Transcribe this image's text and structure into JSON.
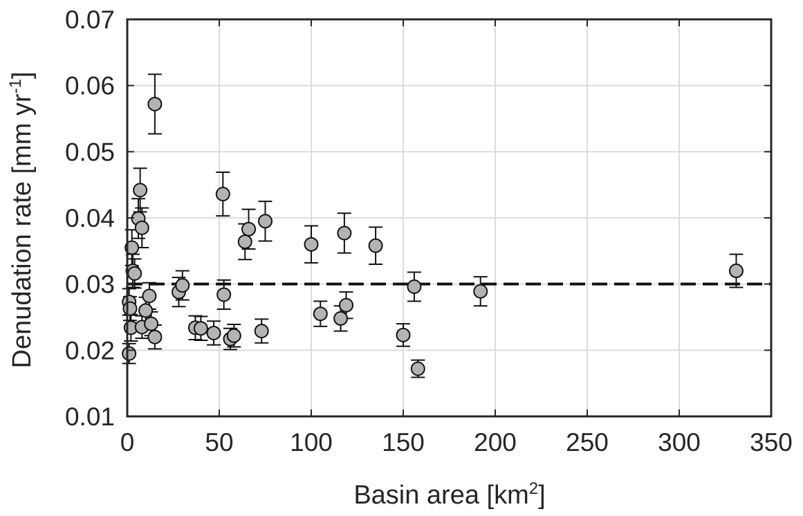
{
  "chart_data": {
    "type": "scatter",
    "xlabel": "Basin area [km",
    "xlabel_sup": "2",
    "xlabel_tail": "]",
    "ylabel": "Denudation rate [mm yr",
    "ylabel_sup": "-1",
    "ylabel_tail": "]",
    "xlim": [
      0,
      350
    ],
    "ylim": [
      0.01,
      0.07
    ],
    "x_ticks": [
      0,
      50,
      100,
      150,
      200,
      250,
      300,
      350
    ],
    "x_tick_labels": [
      "0",
      "50",
      "100",
      "150",
      "200",
      "250",
      "300",
      "350"
    ],
    "y_ticks": [
      0.01,
      0.02,
      0.03,
      0.04,
      0.05,
      0.06,
      0.07
    ],
    "y_tick_labels": [
      "0.01",
      "0.02",
      "0.03",
      "0.04",
      "0.05",
      "0.06",
      "0.07"
    ],
    "grid": true,
    "reference_line": {
      "y": 0.03,
      "style": "dashed"
    },
    "marker_color": "#b3b3b3",
    "series": [
      {
        "points": [
          {
            "x": 1.0,
            "y": 0.0195,
            "err": 0.0015
          },
          {
            "x": 1.0,
            "y": 0.0273,
            "err": 0.002
          },
          {
            "x": 1.5,
            "y": 0.0263,
            "err": 0.0018
          },
          {
            "x": 2.0,
            "y": 0.0234,
            "err": 0.002
          },
          {
            "x": 2.5,
            "y": 0.0355,
            "err": 0.0027
          },
          {
            "x": 3.0,
            "y": 0.032,
            "err": 0.0025
          },
          {
            "x": 4.0,
            "y": 0.0316,
            "err": 0.0022
          },
          {
            "x": 6.0,
            "y": 0.0399,
            "err": 0.003
          },
          {
            "x": 7.0,
            "y": 0.0442,
            "err": 0.0033
          },
          {
            "x": 8.0,
            "y": 0.0385,
            "err": 0.003
          },
          {
            "x": 8.0,
            "y": 0.0235,
            "err": 0.0017
          },
          {
            "x": 10.0,
            "y": 0.026,
            "err": 0.002
          },
          {
            "x": 12.0,
            "y": 0.0282,
            "err": 0.002
          },
          {
            "x": 13.0,
            "y": 0.024,
            "err": 0.0018
          },
          {
            "x": 15.0,
            "y": 0.022,
            "err": 0.0018
          },
          {
            "x": 15.0,
            "y": 0.0572,
            "err": 0.0045
          },
          {
            "x": 28.0,
            "y": 0.0288,
            "err": 0.0022
          },
          {
            "x": 30.0,
            "y": 0.0298,
            "err": 0.0022
          },
          {
            "x": 37.0,
            "y": 0.0234,
            "err": 0.0018
          },
          {
            "x": 40.0,
            "y": 0.0233,
            "err": 0.0018
          },
          {
            "x": 47.0,
            "y": 0.0226,
            "err": 0.0018
          },
          {
            "x": 52.0,
            "y": 0.0436,
            "err": 0.0033
          },
          {
            "x": 52.5,
            "y": 0.0284,
            "err": 0.0022
          },
          {
            "x": 56.0,
            "y": 0.0217,
            "err": 0.0016
          },
          {
            "x": 58.0,
            "y": 0.0222,
            "err": 0.0017
          },
          {
            "x": 64.0,
            "y": 0.0364,
            "err": 0.0027
          },
          {
            "x": 66.0,
            "y": 0.0383,
            "err": 0.003
          },
          {
            "x": 73.0,
            "y": 0.0229,
            "err": 0.0018
          },
          {
            "x": 75.0,
            "y": 0.0395,
            "err": 0.003
          },
          {
            "x": 100.0,
            "y": 0.036,
            "err": 0.0028
          },
          {
            "x": 105.0,
            "y": 0.0255,
            "err": 0.0019
          },
          {
            "x": 116.0,
            "y": 0.0248,
            "err": 0.0019
          },
          {
            "x": 118.0,
            "y": 0.0377,
            "err": 0.003
          },
          {
            "x": 119.0,
            "y": 0.0268,
            "err": 0.002
          },
          {
            "x": 135.0,
            "y": 0.0358,
            "err": 0.0028
          },
          {
            "x": 150.0,
            "y": 0.0223,
            "err": 0.0017
          },
          {
            "x": 156.0,
            "y": 0.0296,
            "err": 0.0022
          },
          {
            "x": 158.0,
            "y": 0.0172,
            "err": 0.0013
          },
          {
            "x": 192.0,
            "y": 0.0289,
            "err": 0.0022
          },
          {
            "x": 331.0,
            "y": 0.032,
            "err": 0.0025
          }
        ]
      }
    ]
  }
}
